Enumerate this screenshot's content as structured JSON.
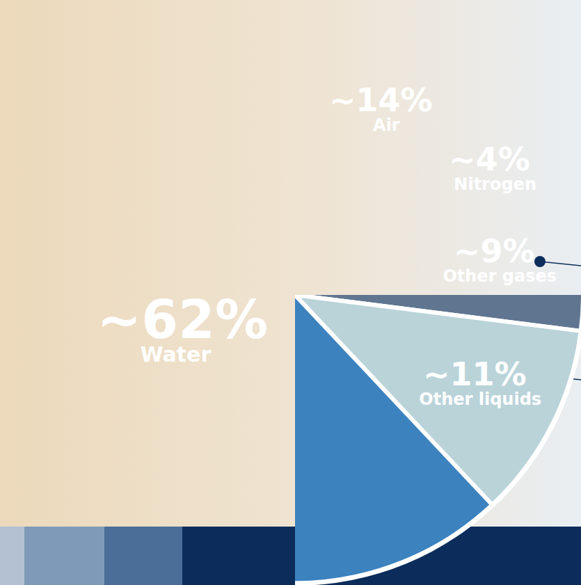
{
  "chart_data": {
    "type": "pie",
    "categories": [
      "Air",
      "Nitrogen",
      "Other gases",
      "Other liquids",
      "Water"
    ],
    "values": [
      14,
      4,
      9,
      11,
      62
    ],
    "value_labels": [
      "~14%",
      "~4%",
      "~9%",
      "~11%",
      "~62%"
    ],
    "colors": [
      "#5b9bd3",
      "#6c7674",
      "#607590",
      "#b9d3d9",
      "#3b82bf"
    ],
    "data_labels": true
  }
}
